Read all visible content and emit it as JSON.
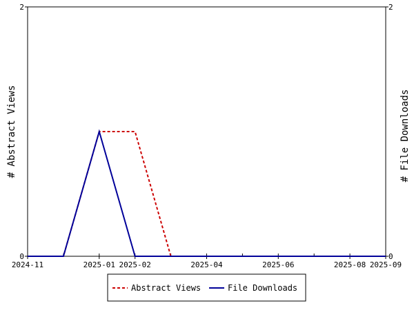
{
  "chart_data": {
    "type": "line",
    "x": [
      "2024-11",
      "2024-12",
      "2025-01",
      "2025-02",
      "2025-03",
      "2025-04",
      "2025-05",
      "2025-06",
      "2025-07",
      "2025-08",
      "2025-09"
    ],
    "x_tick_labels": [
      "2024-11",
      "2025-01",
      "2025-02",
      "2025-04",
      "2025-06",
      "2025-08",
      "2025-09"
    ],
    "series": [
      {
        "name": "Abstract Views",
        "axis": "left",
        "color": "#cc0000",
        "dash": "dashed",
        "values": [
          0,
          0,
          1,
          1,
          0,
          0,
          0,
          0,
          0,
          0,
          0
        ]
      },
      {
        "name": "File Downloads",
        "axis": "right",
        "color": "#000099",
        "dash": "solid",
        "values": [
          0,
          0,
          1,
          0,
          0,
          0,
          0,
          0,
          0,
          0,
          0
        ]
      }
    ],
    "ylabel_left": "# Abstract Views",
    "ylabel_right": "# File Downloads",
    "ylim_left": [
      0,
      2
    ],
    "ylim_right": [
      0,
      2
    ],
    "y_tick_labels_left": [
      "0",
      "2"
    ],
    "y_tick_labels_right": [
      "0",
      "2"
    ],
    "grid": false,
    "legend_position": "bottom-center"
  }
}
